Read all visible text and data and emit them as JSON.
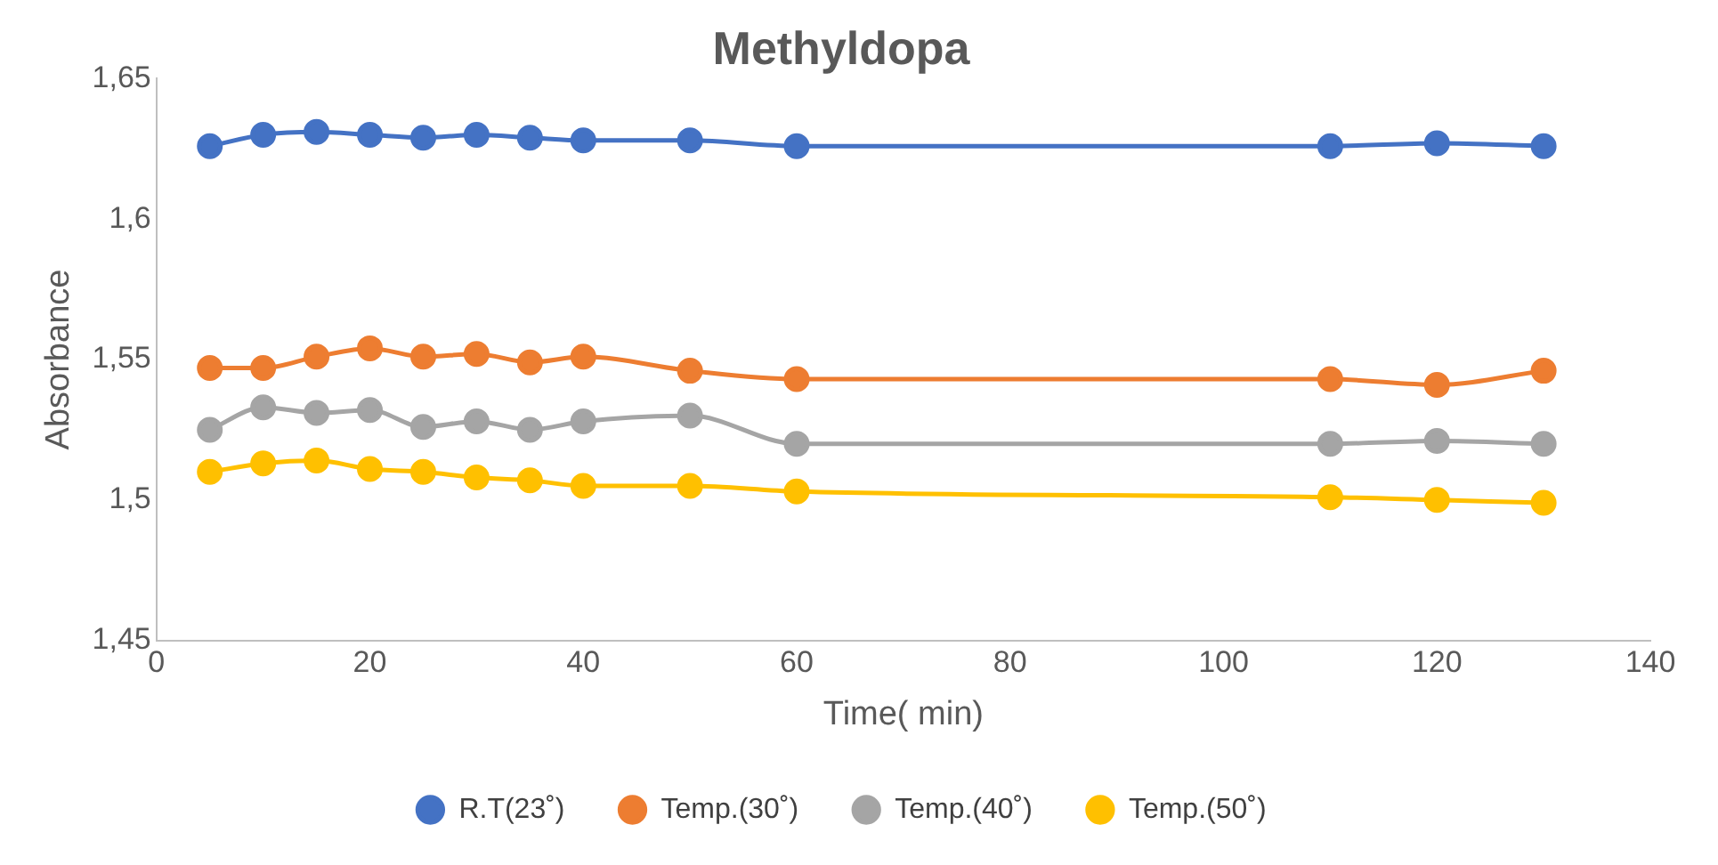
{
  "chart_data": {
    "type": "line",
    "title": "Methyldopa",
    "xlabel": "Time( min)",
    "ylabel": "Absorbance",
    "x": [
      5,
      10,
      15,
      20,
      25,
      30,
      35,
      40,
      50,
      60,
      110,
      120,
      130
    ],
    "series": [
      {
        "name": "R.T(23˚)",
        "color": "#4472c4",
        "values": [
          1.626,
          1.63,
          1.631,
          1.63,
          1.629,
          1.63,
          1.629,
          1.628,
          1.628,
          1.626,
          1.626,
          1.627,
          1.626
        ]
      },
      {
        "name": "Temp.(30˚)",
        "color": "#ed7d31",
        "values": [
          1.547,
          1.547,
          1.551,
          1.554,
          1.551,
          1.552,
          1.549,
          1.551,
          1.546,
          1.543,
          1.543,
          1.541,
          1.546
        ]
      },
      {
        "name": "Temp.(40˚)",
        "color": "#a5a5a5",
        "values": [
          1.525,
          1.533,
          1.531,
          1.532,
          1.526,
          1.528,
          1.525,
          1.528,
          1.53,
          1.52,
          1.52,
          1.521,
          1.52
        ]
      },
      {
        "name": "Temp.(50˚)",
        "color": "#ffc000",
        "values": [
          1.51,
          1.513,
          1.514,
          1.511,
          1.51,
          1.508,
          1.507,
          1.505,
          1.505,
          1.503,
          1.501,
          1.5,
          1.499
        ]
      }
    ],
    "xlim": [
      0,
      140
    ],
    "xticks": [
      0,
      20,
      40,
      60,
      80,
      100,
      120,
      140
    ],
    "ylim": [
      1.45,
      1.65
    ],
    "yticks": [
      {
        "value": 1.45,
        "label": "1,45"
      },
      {
        "value": 1.5,
        "label": "1,5"
      },
      {
        "value": 1.55,
        "label": "1,55"
      },
      {
        "value": 1.6,
        "label": "1,6"
      },
      {
        "value": 1.65,
        "label": "1,65"
      }
    ],
    "grid": false,
    "legend": "bottom",
    "marker": "circle",
    "line_style": "solid"
  }
}
